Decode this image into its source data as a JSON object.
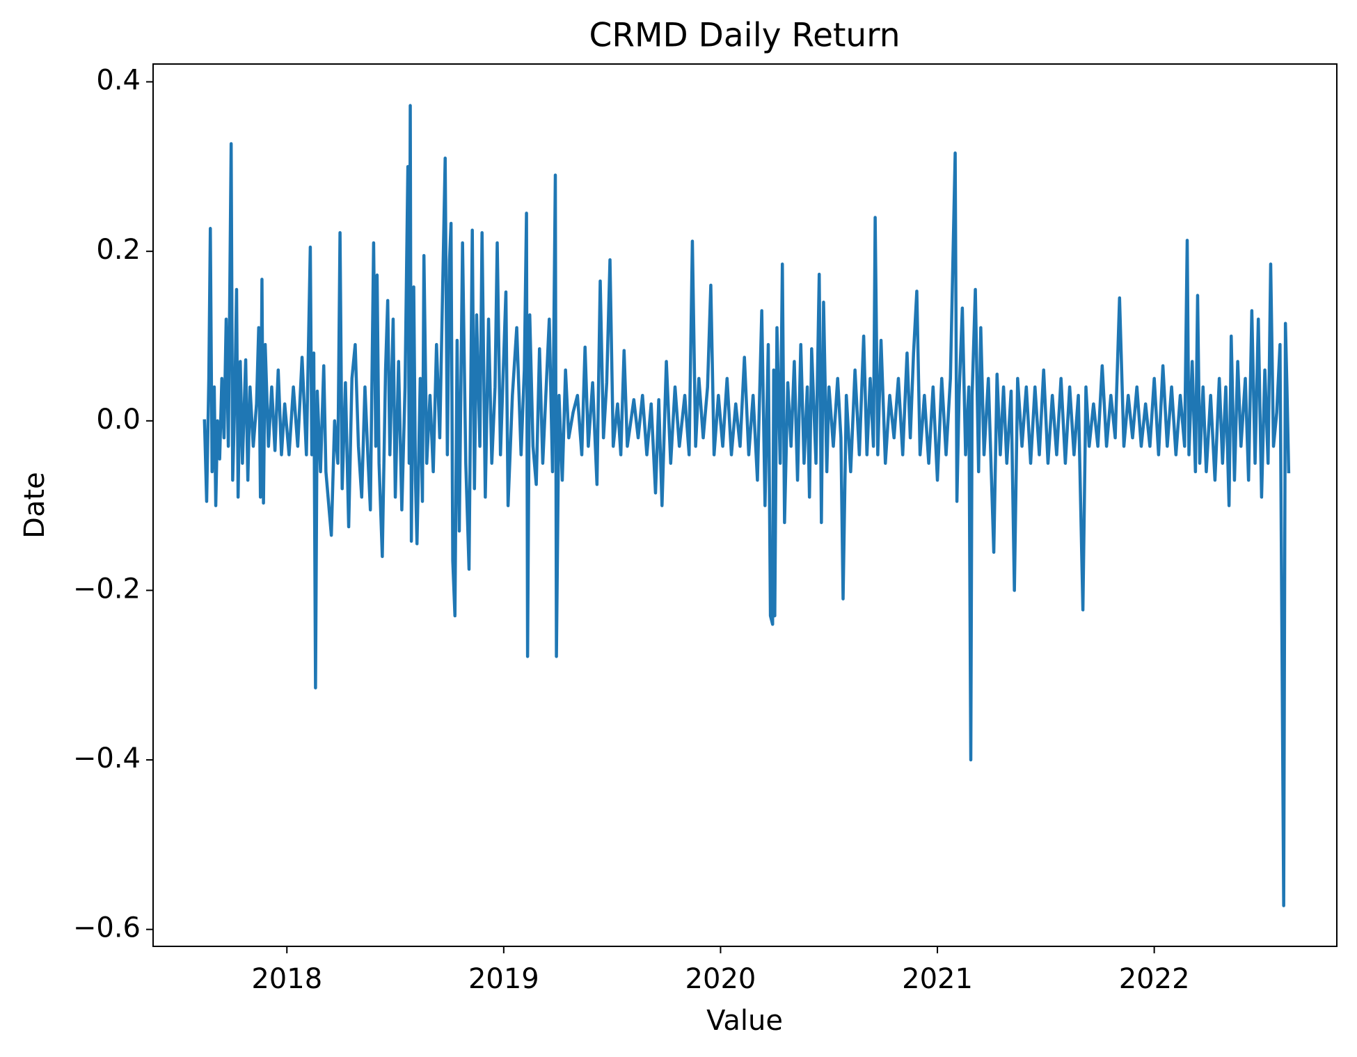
{
  "chart_data": {
    "type": "line",
    "title": "CRMD Daily Return",
    "xlabel": "Value",
    "ylabel": "Date",
    "color": "#1f77b4",
    "xlim": [
      2017.383,
      2022.842
    ],
    "ylim": [
      -0.62,
      0.421
    ],
    "xticks": [
      2018,
      2019,
      2020,
      2021,
      2022
    ],
    "yticks": [
      {
        "value": -0.6,
        "label": "−0.6"
      },
      {
        "value": -0.4,
        "label": "−0.4"
      },
      {
        "value": -0.2,
        "label": "−0.2"
      },
      {
        "value": 0,
        "label": "0.0"
      },
      0.2,
      0.4
    ],
    "x": [
      2017.62,
      2017.63,
      2017.64,
      2017.647,
      2017.655,
      2017.665,
      2017.672,
      2017.68,
      2017.69,
      2017.7,
      2017.71,
      2017.72,
      2017.73,
      2017.743,
      2017.75,
      2017.76,
      2017.768,
      2017.775,
      2017.785,
      2017.795,
      2017.81,
      2017.82,
      2017.83,
      2017.845,
      2017.86,
      2017.87,
      2017.878,
      2017.885,
      2017.892,
      2017.9,
      2017.915,
      2017.93,
      2017.945,
      2017.96,
      2017.975,
      2017.99,
      2018.01,
      2018.03,
      2018.05,
      2018.07,
      2018.09,
      2018.108,
      2018.115,
      2018.124,
      2018.132,
      2018.14,
      2018.155,
      2018.17,
      2018.18,
      2018.205,
      2018.22,
      2018.235,
      2018.245,
      2018.255,
      2018.27,
      2018.285,
      2018.3,
      2018.315,
      2018.33,
      2018.345,
      2018.36,
      2018.375,
      2018.385,
      2018.4,
      2018.41,
      2018.416,
      2018.425,
      2018.44,
      2018.455,
      2018.465,
      2018.475,
      2018.49,
      2018.5,
      2018.515,
      2018.53,
      2018.545,
      2018.558,
      2018.564,
      2018.569,
      2018.574,
      2018.585,
      2018.593,
      2018.6,
      2018.615,
      2018.625,
      2018.632,
      2018.645,
      2018.66,
      2018.675,
      2018.69,
      2018.705,
      2018.73,
      2018.74,
      2018.75,
      2018.757,
      2018.765,
      2018.775,
      2018.785,
      2018.795,
      2018.81,
      2018.825,
      2018.84,
      2018.855,
      2018.865,
      2018.875,
      2018.89,
      2018.9,
      2018.915,
      2018.93,
      2018.945,
      2018.96,
      2018.97,
      2018.985,
      2019.01,
      2019.02,
      2019.04,
      2019.06,
      2019.08,
      2019.095,
      2019.105,
      2019.11,
      2019.12,
      2019.135,
      2019.15,
      2019.165,
      2019.18,
      2019.21,
      2019.225,
      2019.238,
      2019.243,
      2019.255,
      2019.27,
      2019.285,
      2019.3,
      2019.32,
      2019.34,
      2019.36,
      2019.375,
      2019.39,
      2019.41,
      2019.43,
      2019.445,
      2019.46,
      2019.475,
      2019.49,
      2019.505,
      2019.525,
      2019.54,
      2019.555,
      2019.57,
      2019.6,
      2019.62,
      2019.64,
      2019.66,
      2019.68,
      2019.7,
      2019.715,
      2019.73,
      2019.75,
      2019.77,
      2019.79,
      2019.81,
      2019.835,
      2019.855,
      2019.87,
      2019.885,
      2019.9,
      2019.92,
      2019.94,
      2019.955,
      2019.97,
      2019.99,
      2020.01,
      2020.03,
      2020.05,
      2020.07,
      2020.09,
      2020.11,
      2020.13,
      2020.15,
      2020.17,
      2020.19,
      2020.205,
      2020.22,
      2020.23,
      2020.24,
      2020.245,
      2020.25,
      2020.26,
      2020.275,
      2020.285,
      2020.295,
      2020.31,
      2020.325,
      2020.34,
      2020.355,
      2020.37,
      2020.385,
      2020.4,
      2020.41,
      2020.42,
      2020.44,
      2020.455,
      2020.465,
      2020.475,
      2020.49,
      2020.5,
      2020.52,
      2020.54,
      2020.555,
      2020.565,
      2020.58,
      2020.6,
      2020.62,
      2020.64,
      2020.66,
      2020.675,
      2020.69,
      2020.705,
      2020.713,
      2020.725,
      2020.74,
      2020.76,
      2020.78,
      2020.8,
      2020.82,
      2020.84,
      2020.86,
      2020.875,
      2020.89,
      2020.905,
      2020.92,
      2020.94,
      2020.96,
      2020.98,
      2021.0,
      2021.02,
      2021.04,
      2021.06,
      2021.082,
      2021.09,
      2021.1,
      2021.115,
      2021.13,
      2021.145,
      2021.154,
      2021.16,
      2021.175,
      2021.19,
      2021.2,
      2021.215,
      2021.235,
      2021.26,
      2021.275,
      2021.29,
      2021.305,
      2021.32,
      2021.34,
      2021.355,
      2021.37,
      2021.39,
      2021.41,
      2021.43,
      2021.45,
      2021.47,
      2021.49,
      2021.51,
      2021.53,
      2021.55,
      2021.57,
      2021.59,
      2021.61,
      2021.63,
      2021.65,
      2021.671,
      2021.685,
      2021.7,
      2021.72,
      2021.74,
      2021.76,
      2021.78,
      2021.8,
      2021.82,
      2021.84,
      2021.86,
      2021.88,
      2021.9,
      2021.92,
      2021.94,
      2021.96,
      2021.98,
      2022.0,
      2022.02,
      2022.04,
      2022.06,
      2022.08,
      2022.1,
      2022.12,
      2022.14,
      2022.152,
      2022.16,
      2022.175,
      2022.19,
      2022.2,
      2022.21,
      2022.225,
      2022.24,
      2022.26,
      2022.28,
      2022.3,
      2022.315,
      2022.33,
      2022.345,
      2022.355,
      2022.37,
      2022.385,
      2022.4,
      2022.42,
      2022.435,
      2022.45,
      2022.465,
      2022.48,
      2022.495,
      2022.51,
      2022.525,
      2022.537,
      2022.55,
      2022.565,
      2022.58,
      2022.597,
      2022.605,
      2022.612,
      2022.62
    ],
    "values": [
      0.0,
      -0.095,
      0.05,
      0.227,
      -0.06,
      0.04,
      -0.1,
      0.0,
      -0.045,
      0.05,
      -0.02,
      0.12,
      -0.03,
      0.327,
      -0.07,
      0.03,
      0.155,
      -0.09,
      0.07,
      -0.05,
      0.072,
      -0.07,
      0.04,
      -0.03,
      0.02,
      0.11,
      -0.09,
      0.167,
      -0.097,
      0.09,
      -0.03,
      0.04,
      -0.035,
      0.06,
      -0.04,
      0.02,
      -0.04,
      0.04,
      -0.03,
      0.075,
      -0.04,
      0.205,
      -0.04,
      0.08,
      -0.315,
      0.035,
      -0.06,
      0.065,
      -0.06,
      -0.135,
      0.0,
      -0.05,
      0.222,
      -0.08,
      0.045,
      -0.125,
      0.05,
      0.09,
      -0.03,
      -0.09,
      0.04,
      -0.05,
      -0.105,
      0.21,
      -0.03,
      0.172,
      -0.05,
      -0.16,
      0.06,
      0.142,
      -0.04,
      0.12,
      -0.09,
      0.07,
      -0.105,
      0.04,
      0.3,
      -0.05,
      0.372,
      -0.142,
      0.158,
      -0.07,
      -0.145,
      0.05,
      -0.095,
      0.195,
      -0.05,
      0.03,
      -0.06,
      0.09,
      -0.02,
      0.31,
      -0.04,
      0.19,
      0.233,
      -0.165,
      -0.23,
      0.095,
      -0.13,
      0.21,
      -0.05,
      -0.175,
      0.225,
      -0.08,
      0.125,
      -0.03,
      0.222,
      -0.09,
      0.12,
      -0.05,
      0.04,
      0.21,
      -0.04,
      0.152,
      -0.1,
      0.03,
      0.11,
      -0.04,
      0.06,
      0.245,
      -0.278,
      0.125,
      -0.03,
      -0.075,
      0.085,
      -0.05,
      0.12,
      -0.06,
      0.29,
      -0.278,
      0.03,
      -0.07,
      0.06,
      -0.02,
      0.01,
      0.03,
      -0.04,
      0.087,
      -0.03,
      0.045,
      -0.075,
      0.165,
      -0.02,
      0.045,
      0.19,
      -0.03,
      0.02,
      -0.04,
      0.083,
      -0.03,
      0.025,
      -0.02,
      0.03,
      -0.04,
      0.02,
      -0.085,
      0.025,
      -0.1,
      0.07,
      -0.05,
      0.04,
      -0.03,
      0.03,
      -0.04,
      0.212,
      -0.03,
      0.05,
      -0.02,
      0.04,
      0.16,
      -0.04,
      0.03,
      -0.03,
      0.05,
      -0.04,
      0.02,
      -0.03,
      0.075,
      -0.04,
      0.03,
      -0.07,
      0.13,
      -0.1,
      0.09,
      -0.23,
      -0.24,
      0.06,
      -0.23,
      0.11,
      -0.05,
      0.185,
      -0.12,
      0.045,
      -0.03,
      0.07,
      -0.07,
      0.09,
      -0.05,
      0.04,
      -0.09,
      0.085,
      -0.05,
      0.173,
      -0.12,
      0.14,
      -0.06,
      0.04,
      -0.03,
      0.05,
      -0.02,
      -0.21,
      0.03,
      -0.06,
      0.06,
      -0.04,
      0.1,
      -0.04,
      0.05,
      -0.03,
      0.24,
      -0.04,
      0.095,
      -0.05,
      0.03,
      -0.02,
      0.05,
      -0.04,
      0.08,
      -0.02,
      0.08,
      0.153,
      -0.04,
      0.03,
      -0.05,
      0.04,
      -0.07,
      0.05,
      -0.04,
      0.05,
      0.316,
      -0.095,
      0.03,
      0.133,
      -0.04,
      0.04,
      -0.4,
      0.03,
      0.155,
      -0.06,
      0.11,
      -0.04,
      0.05,
      -0.155,
      0.055,
      -0.04,
      0.04,
      -0.05,
      0.035,
      -0.2,
      0.05,
      -0.03,
      0.04,
      -0.05,
      0.04,
      -0.04,
      0.06,
      -0.05,
      0.03,
      -0.04,
      0.05,
      -0.05,
      0.04,
      -0.04,
      0.03,
      -0.223,
      0.04,
      -0.03,
      0.02,
      -0.03,
      0.065,
      -0.03,
      0.03,
      -0.02,
      0.145,
      -0.03,
      0.03,
      -0.02,
      0.04,
      -0.03,
      0.02,
      -0.03,
      0.05,
      -0.04,
      0.065,
      -0.03,
      0.04,
      -0.04,
      0.03,
      -0.03,
      0.213,
      -0.04,
      0.07,
      -0.06,
      0.148,
      -0.05,
      0.04,
      -0.06,
      0.03,
      -0.07,
      0.05,
      -0.05,
      0.04,
      -0.1,
      0.1,
      -0.07,
      0.07,
      -0.03,
      0.05,
      -0.07,
      0.13,
      -0.05,
      0.12,
      -0.09,
      0.06,
      -0.05,
      0.185,
      -0.03,
      0.01,
      0.09,
      -0.572,
      0.115,
      0.04,
      -0.06
    ]
  }
}
